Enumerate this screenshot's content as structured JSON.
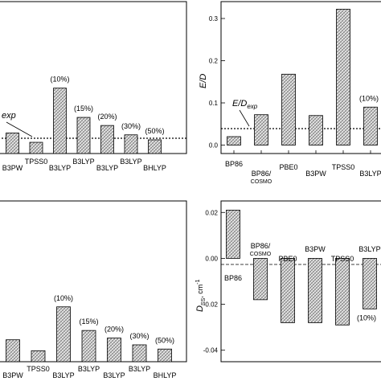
{
  "chart_data": [
    {
      "panel": "top-left",
      "type": "bar",
      "categories": [
        "",
        "B3PW",
        "TPSS0",
        "B3LYP",
        "B3LYP",
        "B3LYP",
        "B3LYP",
        "BHLYP"
      ],
      "category_labels": [
        {
          "text": "B3PW",
          "sub": ""
        },
        {
          "text": "TPSS0",
          "sub": ""
        },
        {
          "text": "B3LYP",
          "sub": ""
        },
        {
          "text": "B3LYP",
          "sub": ""
        },
        {
          "text": "B3LYP",
          "sub": ""
        },
        {
          "text": "B3LYP",
          "sub": ""
        },
        {
          "text": "BHLYP",
          "sub": ""
        }
      ],
      "bar_labels": [
        "",
        "",
        "",
        "(10%)",
        "(15%)",
        "(20%)",
        "(30%)",
        "(50%)"
      ],
      "values": [
        null,
        0.033,
        0.018,
        0.105,
        0.058,
        0.045,
        0.03,
        0.022
      ],
      "ylim": [
        -0.02,
        0.34
      ],
      "reference_line": {
        "value": 0.052,
        "label": "exp",
        "label_prefix": ""
      },
      "xlabel": "",
      "ylabel": ""
    },
    {
      "panel": "top-right",
      "type": "bar",
      "categories": [
        "BP86",
        "BP86/COSMO",
        "PBE0",
        "B3PW",
        "TPSS0",
        "B3LYP"
      ],
      "category_labels": [
        {
          "text": "BP86",
          "sub": ""
        },
        {
          "text": "BP86/",
          "sub": "COSMO"
        },
        {
          "text": "PBE0",
          "sub": ""
        },
        {
          "text": "B3PW",
          "sub": ""
        },
        {
          "text": "TPSS0",
          "sub": ""
        },
        {
          "text": "B3LYP",
          "sub": ""
        }
      ],
      "bar_labels": [
        "",
        "",
        "",
        "",
        "",
        "(10%)"
      ],
      "values": [
        0.02,
        0.072,
        0.168,
        0.07,
        0.322,
        0.09
      ],
      "ylim": [
        -0.02,
        0.34
      ],
      "yticks": [
        0.0,
        0.1,
        0.2,
        0.3
      ],
      "ytick_labels": [
        "0.0",
        "0.1",
        "0.2",
        "0.3"
      ],
      "reference_line": {
        "value": 0.077,
        "label": "E/D exp"
      },
      "ylabel": "E/D",
      "xlabel": ""
    },
    {
      "panel": "bottom-left",
      "type": "bar",
      "categories": [
        "B3PW",
        "TPSS0",
        "B3LYP",
        "B3LYP",
        "B3LYP",
        "B3LYP",
        "BHLYP"
      ],
      "category_labels": [
        {
          "text": "B3PW",
          "sub": ""
        },
        {
          "text": "TPSS0",
          "sub": ""
        },
        {
          "text": "B3LYP",
          "sub": ""
        },
        {
          "text": "B3LYP",
          "sub": ""
        },
        {
          "text": "B3LYP",
          "sub": ""
        },
        {
          "text": "B3LYP",
          "sub": ""
        },
        {
          "text": "BHLYP",
          "sub": ""
        }
      ],
      "bar_labels": [
        "",
        "",
        "(10%)",
        "(15%)",
        "(20%)",
        "(30%)",
        "(50%)"
      ],
      "values": [
        0.026,
        0.013,
        0.065,
        0.037,
        0.028,
        0.02,
        0.015
      ],
      "ylim": [
        0.0,
        0.1
      ],
      "xlabel": "",
      "ylabel": ""
    },
    {
      "panel": "bottom-right",
      "type": "bar",
      "categories": [
        "BP86",
        "BP86/COSMO",
        "PBE0",
        "B3PW",
        "TPSS0",
        "B3LYP"
      ],
      "category_labels": [
        {
          "text": "BP86",
          "sub": ""
        },
        {
          "text": "BP86/",
          "sub": "COSMO"
        },
        {
          "text": "PBE0",
          "sub": ""
        },
        {
          "text": "B3PW",
          "sub": ""
        },
        {
          "text": "TPSS0",
          "sub": ""
        },
        {
          "text": "B3LYP",
          "sub": ""
        }
      ],
      "bar_labels": [
        "",
        "",
        "",
        "",
        "",
        "(10%)"
      ],
      "values": [
        0.021,
        -0.018,
        -0.028,
        -0.028,
        -0.029,
        -0.022
      ],
      "ylim": [
        -0.045,
        0.025
      ],
      "yticks": [
        0.02,
        0.0,
        -0.02,
        -0.04
      ],
      "ytick_labels": [
        "0.02",
        "0.00",
        "-0.02",
        "-0.04"
      ],
      "ylabel": "D_SS, cm-1",
      "xlabel": ""
    }
  ],
  "labels": {
    "tl_ref_label": "exp",
    "tr_ylabel": "E/D",
    "tr_ref_main": "E/D",
    "tr_ref_sub": "exp",
    "br_ylabel_main": "D",
    "br_ylabel_sub": "SS",
    "br_ylabel_unit": ", cm",
    "br_ylabel_sup": "-1"
  },
  "colors": {
    "bar_fill": "#cfcfcf",
    "bar_stroke": "#000000",
    "hatch": "#555555"
  }
}
